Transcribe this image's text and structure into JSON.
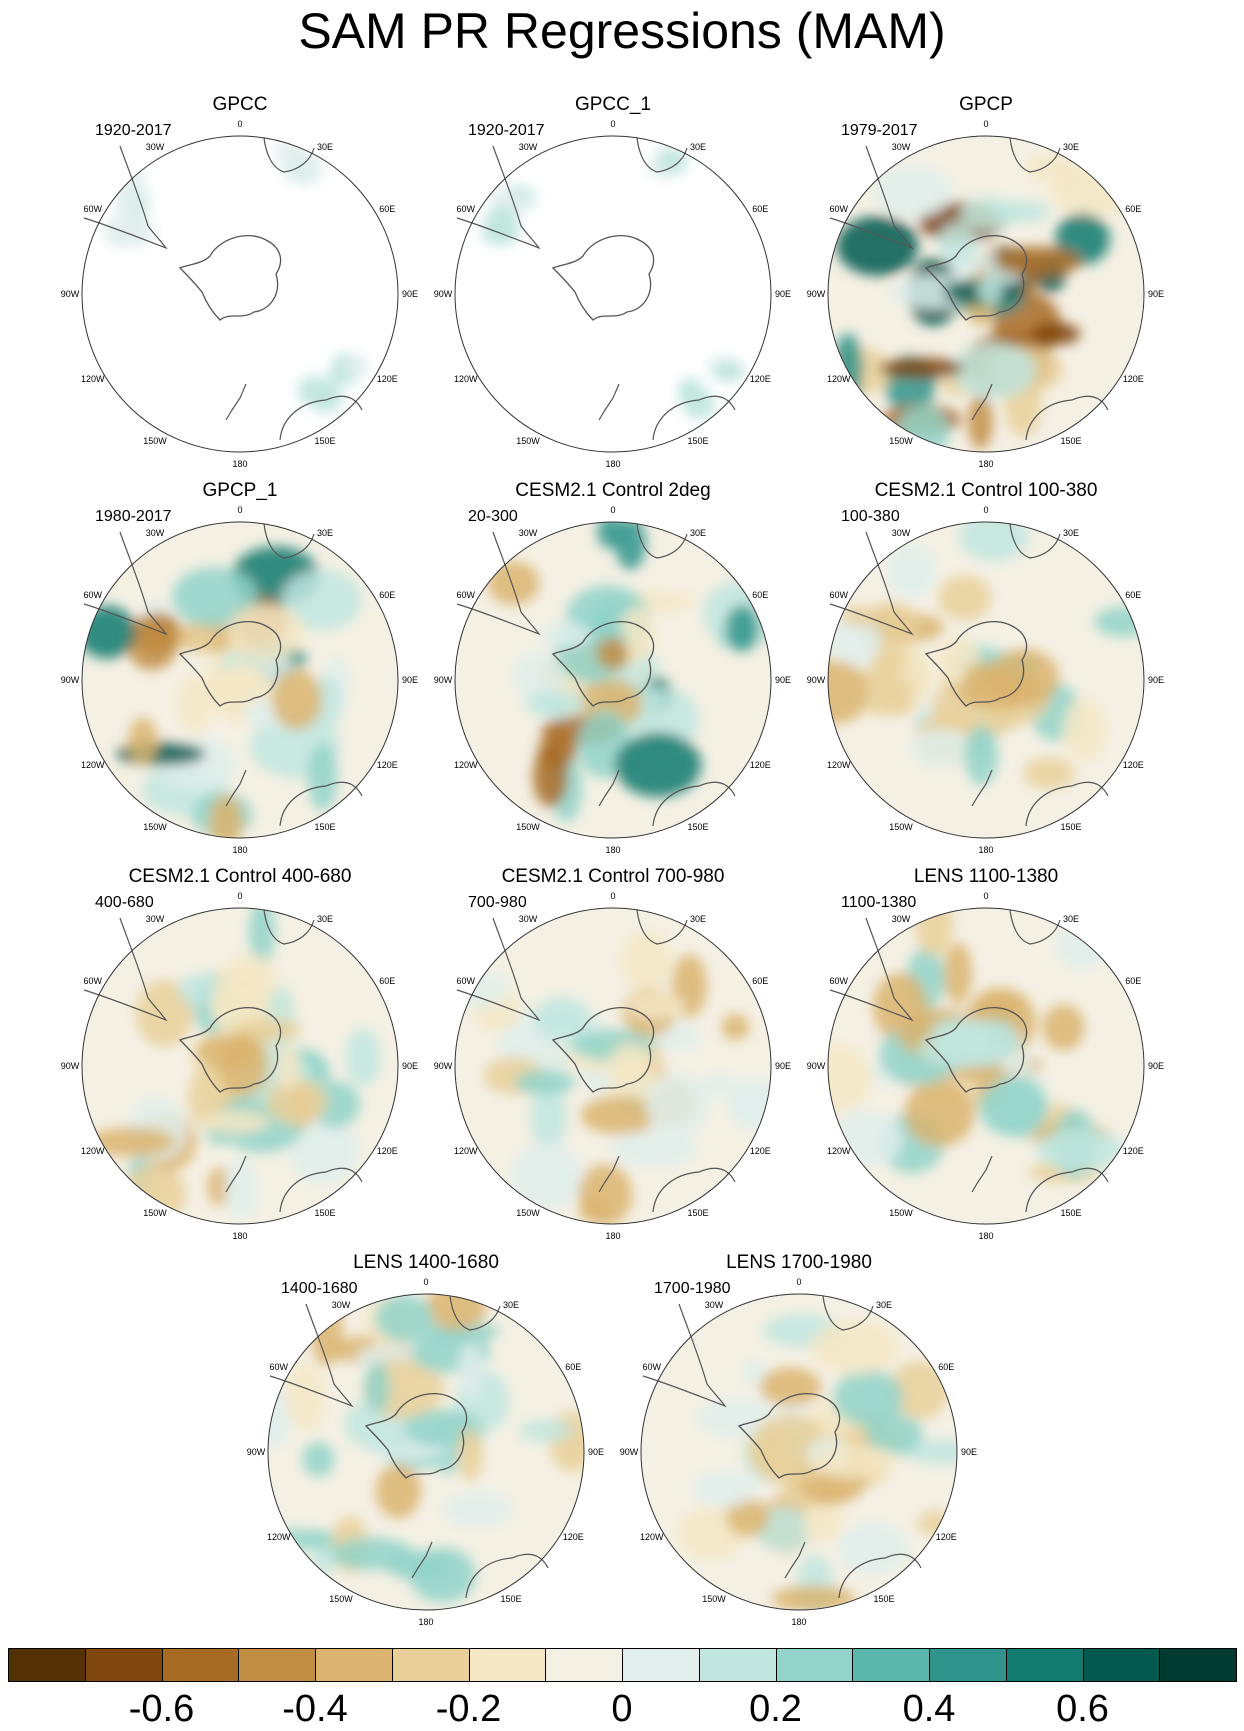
{
  "title": "SAM PR Regressions (MAM)",
  "longitude_labels": [
    "0",
    "30E",
    "60E",
    "90E",
    "120E",
    "150E",
    "180",
    "150W",
    "120W",
    "90W",
    "60W",
    "30W"
  ],
  "panels": [
    {
      "title": "GPCC",
      "period": "1920-2017",
      "coverage": "land-only"
    },
    {
      "title": "GPCC_1",
      "period": "1920-2017",
      "coverage": "land-only"
    },
    {
      "title": "GPCP",
      "period": "1979-2017",
      "coverage": "full"
    },
    {
      "title": "GPCP_1",
      "period": "1980-2017",
      "coverage": "full"
    },
    {
      "title": "CESM2.1 Control 2deg",
      "period": "20-300",
      "coverage": "full"
    },
    {
      "title": "CESM2.1 Control 100-380",
      "period": "100-380",
      "coverage": "full"
    },
    {
      "title": "CESM2.1 Control 400-680",
      "period": "400-680",
      "coverage": "full"
    },
    {
      "title": "CESM2.1 Control 700-980",
      "period": "700-980",
      "coverage": "full"
    },
    {
      "title": "LENS 1100-1380",
      "period": "1100-1380",
      "coverage": "full"
    },
    {
      "title": "LENS 1400-1680",
      "period": "1400-1680",
      "coverage": "full"
    },
    {
      "title": "LENS 1700-1980",
      "period": "1700-1980",
      "coverage": "full"
    }
  ],
  "colorbar": {
    "colors": [
      "#543005",
      "#7f470d",
      "#a76b24",
      "#c28e44",
      "#dbb46f",
      "#e9d09a",
      "#f5e8c6",
      "#f4f0e4",
      "#e1eeec",
      "#c1e6df",
      "#92d4c9",
      "#5cb8ac",
      "#2f958c",
      "#137a6f",
      "#03594f",
      "#003b30"
    ],
    "tick_labels": [
      "-0.6",
      "-0.4",
      "-0.2",
      "0",
      "0.2",
      "0.4",
      "0.6"
    ],
    "tick_values": [
      -0.6,
      -0.4,
      -0.2,
      0,
      0.2,
      0.4,
      0.6
    ],
    "range": [
      -0.8,
      0.8
    ]
  }
}
